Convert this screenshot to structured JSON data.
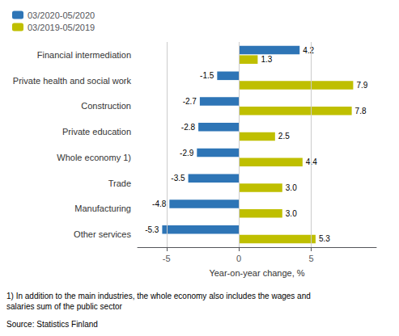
{
  "chart_data": {
    "type": "bar",
    "orientation": "horizontal",
    "categories": [
      "Financial intermediation",
      "Private health and social work",
      "Construction",
      "Private education",
      "Whole economy 1)",
      "Trade",
      "Manufacturing",
      "Other services"
    ],
    "series": [
      {
        "name": "03/2020-05/2020",
        "color": "#2E75B6",
        "values": [
          4.2,
          -1.5,
          -2.7,
          -2.8,
          -2.9,
          -3.5,
          -4.8,
          -5.3
        ]
      },
      {
        "name": "03/2019-05/2019",
        "color": "#BFBF00",
        "values": [
          1.3,
          7.9,
          7.8,
          2.5,
          4.4,
          3.0,
          3.0,
          5.3
        ],
        "value_labels": [
          "1.3",
          "7.9",
          "7.8",
          "2.5",
          "4.4",
          "3.0",
          "3.0",
          "5.3"
        ]
      }
    ],
    "xlabel": "Year-on-year change, %",
    "xlim": [
      -7.0,
      9.5
    ],
    "xticks": [
      -5,
      0,
      5
    ],
    "grid": true,
    "legend": "upper left",
    "data_labels": true,
    "annotations": [
      "1) In addition to the main industries, the whole economy also includes the wages and\nsalaries sum of the public sector",
      "Source: Statistics Finland"
    ]
  }
}
